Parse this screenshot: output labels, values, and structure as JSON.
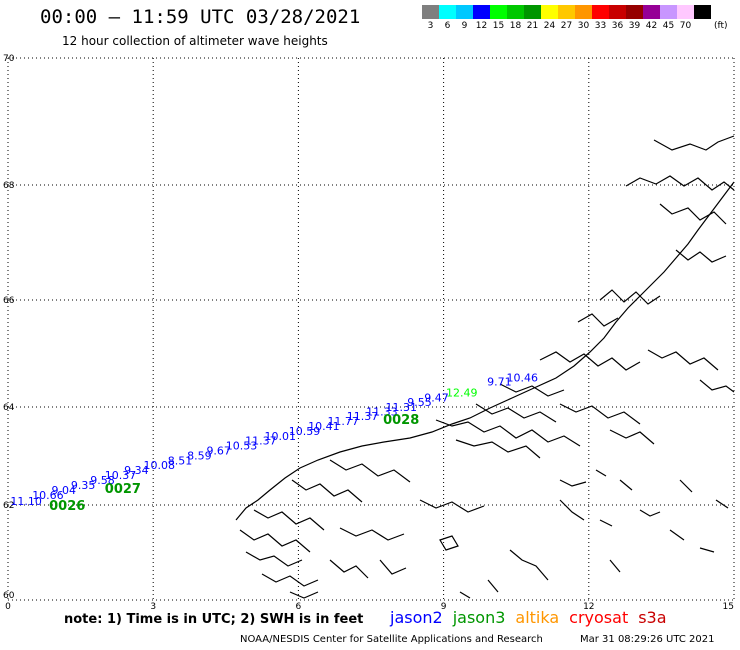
{
  "header": {
    "title": "00:00 – 11:59 UTC 03/28/2021",
    "subtitle": "12 hour collection of altimeter wave heights"
  },
  "color_scale": {
    "unit": "(ft)",
    "bins": [
      {
        "label": "3",
        "color": "#7f7f7f"
      },
      {
        "label": "6",
        "color": "#00ffff"
      },
      {
        "label": "9",
        "color": "#00c8ff"
      },
      {
        "label": "12",
        "color": "#0000ff"
      },
      {
        "label": "15",
        "color": "#00ff00"
      },
      {
        "label": "18",
        "color": "#00c800"
      },
      {
        "label": "21",
        "color": "#009600"
      },
      {
        "label": "24",
        "color": "#ffff00"
      },
      {
        "label": "27",
        "color": "#ffc800"
      },
      {
        "label": "30",
        "color": "#ff9600"
      },
      {
        "label": "33",
        "color": "#ff0000"
      },
      {
        "label": "36",
        "color": "#c80000"
      },
      {
        "label": "39",
        "color": "#960000"
      },
      {
        "label": "42",
        "color": "#960096"
      },
      {
        "label": "45",
        "color": "#c896ff"
      },
      {
        "label": "70",
        "color": "#ffc8ff"
      },
      {
        "label": "",
        "color": "#000000"
      }
    ]
  },
  "map": {
    "lat_labels": [
      "70",
      "68",
      "66",
      "64",
      "62",
      "60"
    ],
    "lon_labels": [
      "0",
      "3",
      "6",
      "9",
      "12",
      "15"
    ],
    "track_labels": [
      {
        "text": "11.10",
        "lon": 0.05,
        "lat": 62.0,
        "color": "#0000ff"
      },
      {
        "text": "10.66",
        "lon": 0.5,
        "lat": 62.12,
        "color": "#0000ff"
      },
      {
        "text": "9.04",
        "lon": 0.9,
        "lat": 62.22,
        "color": "#0000ff"
      },
      {
        "text": "9.35",
        "lon": 1.3,
        "lat": 62.33,
        "color": "#0000ff"
      },
      {
        "text": "9.58",
        "lon": 1.7,
        "lat": 62.43,
        "color": "#0000ff"
      },
      {
        "text": "10.37",
        "lon": 2.0,
        "lat": 62.53,
        "color": "#0000ff"
      },
      {
        "text": "9.34",
        "lon": 2.4,
        "lat": 62.63,
        "color": "#0000ff"
      },
      {
        "text": "10.08",
        "lon": 2.8,
        "lat": 62.73,
        "color": "#0000ff"
      },
      {
        "text": "8.51",
        "lon": 3.3,
        "lat": 62.83,
        "color": "#0000ff"
      },
      {
        "text": "8.59",
        "lon": 3.7,
        "lat": 62.93,
        "color": "#0000ff"
      },
      {
        "text": "9.67",
        "lon": 4.1,
        "lat": 63.03,
        "color": "#0000ff"
      },
      {
        "text": "10.53",
        "lon": 4.5,
        "lat": 63.13,
        "color": "#0000ff"
      },
      {
        "text": "11.37",
        "lon": 4.9,
        "lat": 63.23,
        "color": "#0000ff"
      },
      {
        "text": "10.01",
        "lon": 5.3,
        "lat": 63.33,
        "color": "#0000ff"
      },
      {
        "text": "10.59",
        "lon": 5.8,
        "lat": 63.43,
        "color": "#0000ff"
      },
      {
        "text": "10.41",
        "lon": 6.2,
        "lat": 63.53,
        "color": "#0000ff"
      },
      {
        "text": "11.77",
        "lon": 6.6,
        "lat": 63.63,
        "color": "#0000ff"
      },
      {
        "text": "11.37",
        "lon": 7.0,
        "lat": 63.73,
        "color": "#0000ff"
      },
      {
        "text": "11.33",
        "lon": 7.4,
        "lat": 63.83,
        "color": "#0000ff"
      },
      {
        "text": "11.31",
        "lon": 7.8,
        "lat": 63.92,
        "color": "#0000ff"
      },
      {
        "text": "9.55",
        "lon": 8.25,
        "lat": 64.02,
        "color": "#0000ff"
      },
      {
        "text": "9.47",
        "lon": 8.6,
        "lat": 64.1,
        "color": "#0000ff"
      },
      {
        "text": "12.49",
        "lon": 9.05,
        "lat": 64.2,
        "color": "#00ff00"
      },
      {
        "text": "9.71",
        "lon": 9.9,
        "lat": 64.4,
        "color": "#0000ff"
      },
      {
        "text": "10.46",
        "lon": 10.3,
        "lat": 64.48,
        "color": "#0000ff"
      }
    ],
    "pass_labels": [
      {
        "text": "0026",
        "lon": 0.85,
        "lat": 61.9,
        "color": "#009600"
      },
      {
        "text": "0027",
        "lon": 2.0,
        "lat": 62.25,
        "color": "#009600"
      },
      {
        "text": "0028",
        "lon": 7.75,
        "lat": 63.65,
        "color": "#009600"
      }
    ]
  },
  "footer": {
    "note": "note: 1) Time is in UTC; 2) SWH is in feet",
    "satellites": [
      {
        "name": "jason2",
        "color": "#0000ff"
      },
      {
        "name": "jason3",
        "color": "#009600"
      },
      {
        "name": "altika",
        "color": "#ff9600"
      },
      {
        "name": "cryosat",
        "color": "#ff0000"
      },
      {
        "name": "s3a",
        "color": "#c80000"
      }
    ],
    "credit": "NOAA/NESDIS Center for Satellite Applications and Research",
    "timestamp": "Mar 31 08:29:26 UTC 2021"
  }
}
